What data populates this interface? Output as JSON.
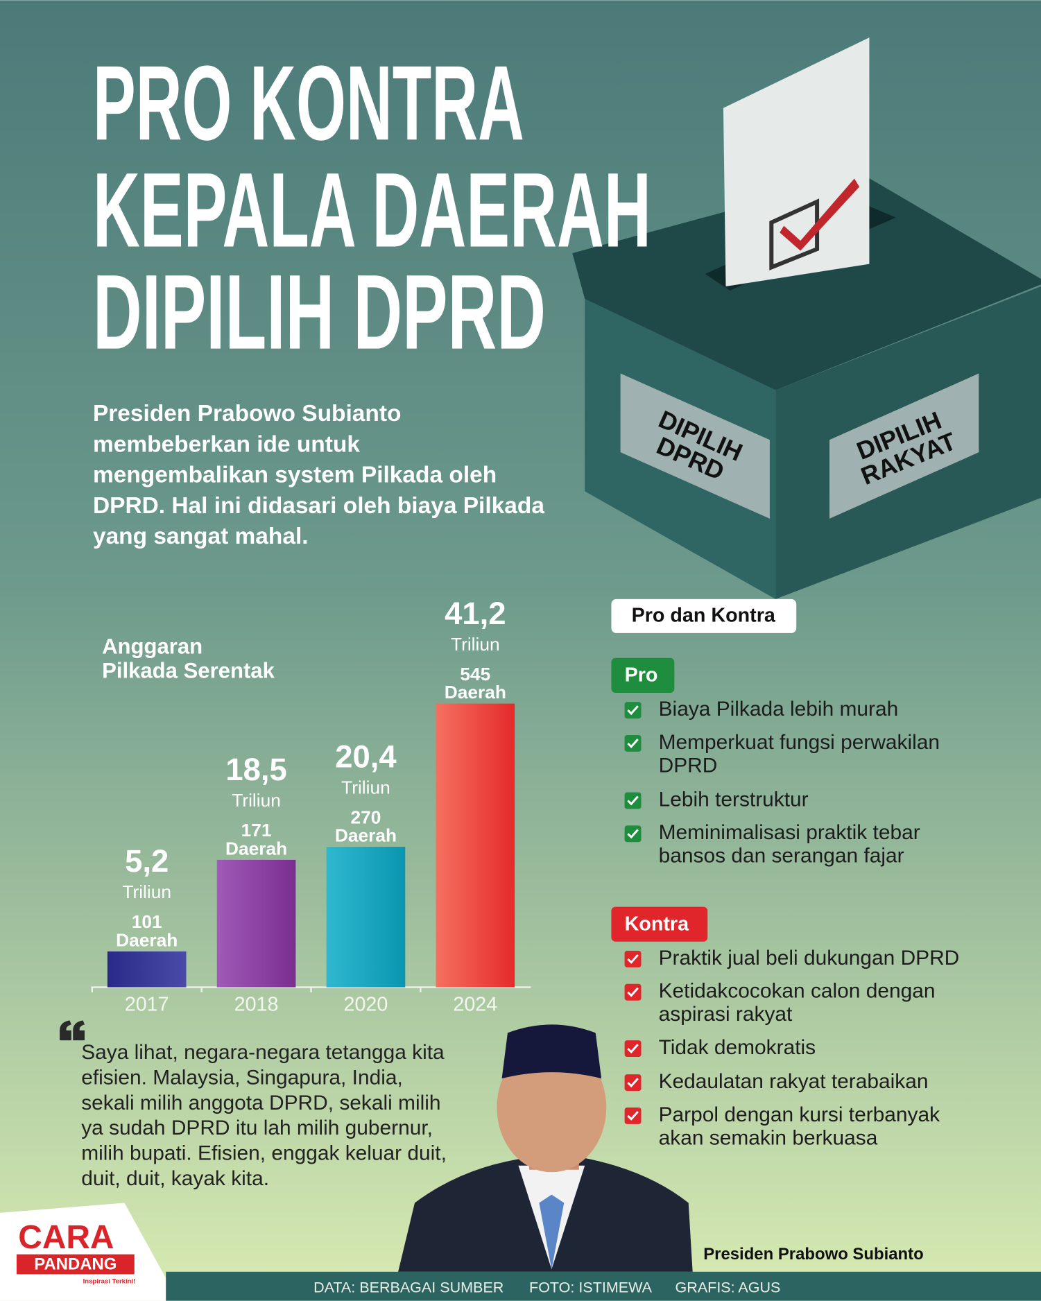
{
  "header": {
    "title_lines": [
      "PRO KONTRA",
      "KEPALA DAERAH",
      "DIPILIH DPRD"
    ],
    "intro_lines": [
      "Presiden Prabowo Subianto",
      "membeberkan ide untuk",
      "mengembalikan system Pilkada oleh",
      "DPRD. Hal ini didasari oleh biaya Pilkada",
      "yang sangat mahal."
    ]
  },
  "ballot_box": {
    "labels": [
      [
        "DIPILIH",
        "DPRD"
      ],
      [
        "DIPILIH",
        "RAKYAT"
      ]
    ]
  },
  "chart_data": {
    "type": "bar",
    "title": [
      "Anggaran",
      "Pilkada Serentak"
    ],
    "categories": [
      "2017",
      "2018",
      "2020",
      "2024"
    ],
    "values": [
      5.2,
      18.5,
      20.4,
      41.2
    ],
    "value_labels": [
      "5,2",
      "18,5",
      "20,4",
      "41,2"
    ],
    "value_unit": "Triliun",
    "regions": [
      101,
      171,
      270,
      545
    ],
    "regions_unit": "Daerah",
    "colors": [
      [
        "#2a2a8a",
        "#4a4aa8"
      ],
      [
        "#a05ab8",
        "#7a2e90"
      ],
      [
        "#2fb8d0",
        "#0a96b0"
      ],
      [
        "#f57060",
        "#e52a2a"
      ]
    ]
  },
  "pro_kontra": {
    "heading": "Pro dan Kontra",
    "pro": {
      "label": "Pro",
      "color": "#1e8e3e",
      "items": [
        [
          "Biaya Pilkada lebih murah"
        ],
        [
          "Memperkuat fungsi perwakilan",
          "DPRD"
        ],
        [
          "Lebih terstruktur"
        ],
        [
          "Meminimalisasi praktik tebar",
          "bansos dan serangan fajar"
        ]
      ]
    },
    "kontra": {
      "label": "Kontra",
      "color": "#e0262b",
      "items": [
        [
          "Praktik jual beli dukungan DPRD"
        ],
        [
          "Ketidakcocokan calon dengan",
          "aspirasi rakyat"
        ],
        [
          "Tidak demokratis"
        ],
        [
          "Kedaulatan rakyat terabaikan"
        ],
        [
          "Parpol dengan kursi terbanyak",
          "akan semakin berkuasa"
        ]
      ]
    }
  },
  "quote": {
    "lines": [
      "Saya lihat, negara-negara tetangga kita",
      "efisien. Malaysia, Singapura, India,",
      "sekali milih anggota DPRD, sekali milih",
      "ya sudah DPRD itu lah milih gubernur,",
      "milih bupati. Efisien, enggak keluar duit,",
      "duit, duit, kayak kita."
    ]
  },
  "photo_caption": "Presiden Prabowo Subianto",
  "credits": [
    "DATA: BERBAGAI SUMBER",
    "FOTO:  ISTIMEWA",
    "GRAFIS: AGUS"
  ],
  "logo": {
    "top": "CARA",
    "bottom": "PANDANG",
    "tagline": "Inspirasi Terkini!"
  }
}
